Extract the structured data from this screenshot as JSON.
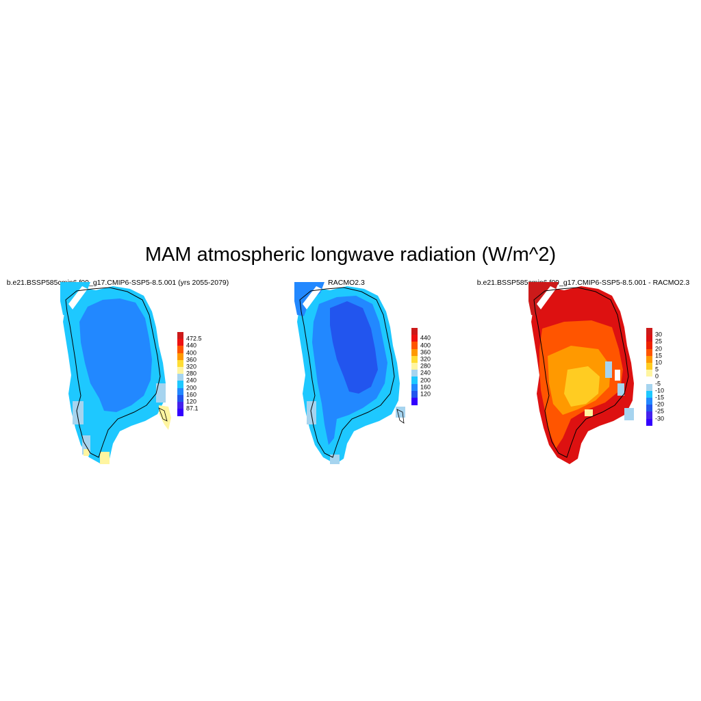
{
  "title": "MAM atmospheric longwave radiation (W/m^2)",
  "panels": [
    {
      "title": "b.e21.BSSP585cmip6.f09_g17.CMIP6-SSP5-8.5.001 (yrs 2055-2079)",
      "colorbar": {
        "labels": [
          "472.5",
          "440",
          "400",
          "360",
          "320",
          "280",
          "240",
          "200",
          "160",
          "120",
          "87.1"
        ],
        "colors": [
          "#cc1a1a",
          "#ee1111",
          "#ff5500",
          "#ff9900",
          "#ffdd33",
          "#fff5a0",
          "#a6d4ef",
          "#1ec8ff",
          "#2288ff",
          "#2255ee",
          "#4422ee",
          "#3300ff"
        ]
      }
    },
    {
      "title": "RACMO2.3",
      "colorbar": {
        "labels": [
          "440",
          "400",
          "360",
          "320",
          "280",
          "240",
          "200",
          "160",
          "120"
        ],
        "colors": [
          "#cc1a1a",
          "#ee1111",
          "#ff5500",
          "#ff9900",
          "#ffdd33",
          "#fff5a0",
          "#a6d4ef",
          "#1ec8ff",
          "#2288ff",
          "#2255ee",
          "#3300ff"
        ]
      }
    },
    {
      "title": "b.e21.BSSP585cmip6.f09_g17.CMIP6-SSP5-8.5.001 - RACMO2.3",
      "colorbar": {
        "labels": [
          "30",
          "25",
          "20",
          "15",
          "10",
          "5",
          "0",
          "-5",
          "-10",
          "-15",
          "-20",
          "-25",
          "-30"
        ],
        "colors": [
          "#cc1a1a",
          "#dd1111",
          "#ee2200",
          "#ff5500",
          "#ff9900",
          "#ffcc22",
          "#fff5a0",
          "#ffffff",
          "#a6d4ef",
          "#1ec8ff",
          "#2288ff",
          "#2255ee",
          "#4422ee",
          "#3300ff"
        ]
      }
    }
  ]
}
